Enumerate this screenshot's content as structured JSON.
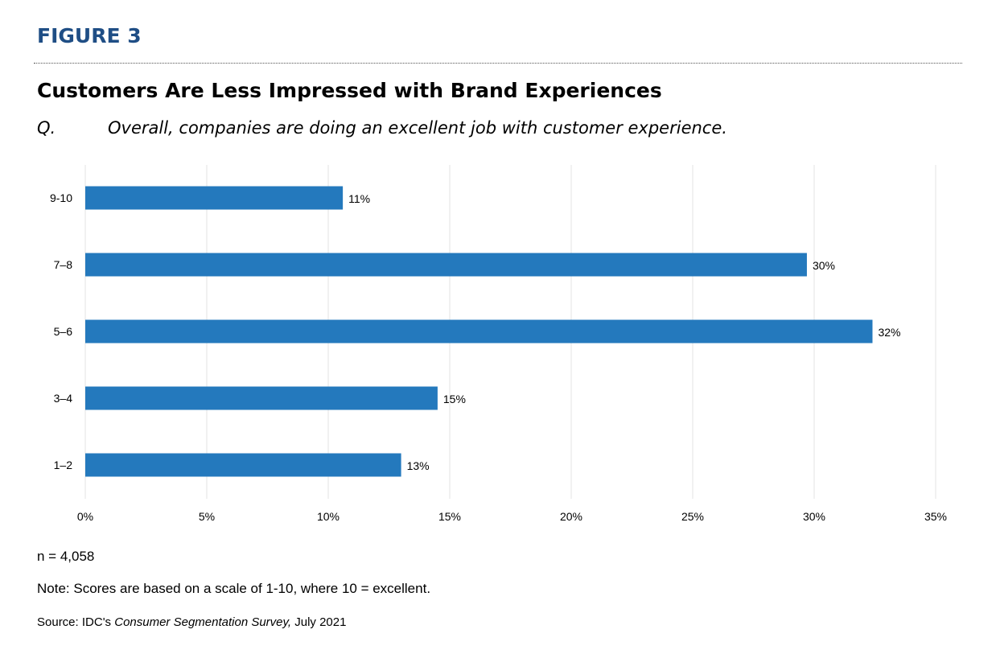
{
  "figure_label": "FIGURE 3",
  "title": "Customers Are Less Impressed with Brand Experiences",
  "question": {
    "label": "Q.",
    "text": "Overall, companies are doing an excellent job with customer experience."
  },
  "footer": {
    "n": "n = 4,058",
    "note": "Note: Scores are based on a scale of 1-10, where 10 = excellent.",
    "source_prefix": "Source: IDC's ",
    "source_title": "Consumer Segmentation Survey,",
    "source_suffix": " July 2021"
  },
  "colors": {
    "bar": "#2479bd",
    "figure_label": "#1f4e85",
    "grid": "#e3e3e3"
  },
  "chart_data": {
    "type": "bar",
    "orientation": "horizontal",
    "categories": [
      "9-10",
      "7–8",
      "5–6",
      "3–4",
      "1–2"
    ],
    "values": [
      10.6,
      29.7,
      32.4,
      14.5,
      13.0
    ],
    "data_labels": [
      "11%",
      "30%",
      "32%",
      "15%",
      "13%"
    ],
    "xlim": [
      0,
      35
    ],
    "x_ticks": [
      0,
      5,
      10,
      15,
      20,
      25,
      30,
      35
    ],
    "x_tick_labels": [
      "0%",
      "5%",
      "10%",
      "15%",
      "20%",
      "25%",
      "30%",
      "35%"
    ],
    "grid": "vertical",
    "title": "",
    "xlabel": "",
    "ylabel": ""
  }
}
